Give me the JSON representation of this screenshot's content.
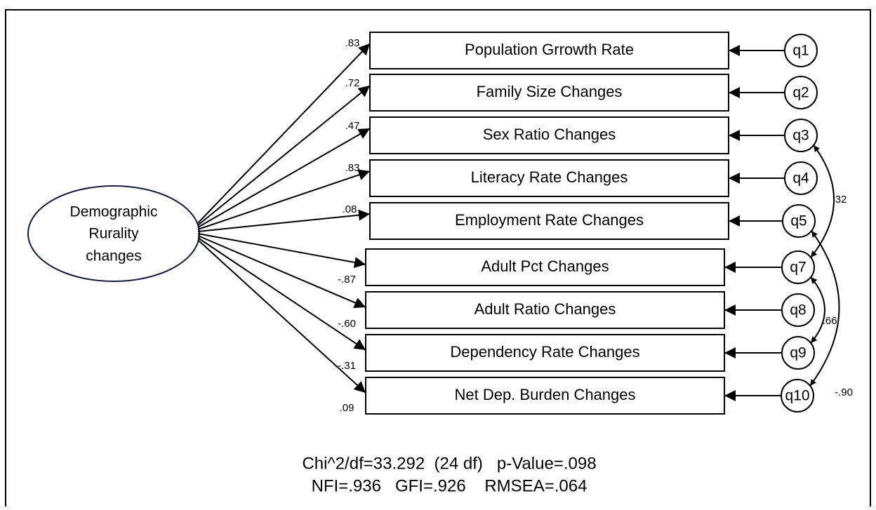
{
  "latent": {
    "label": [
      "Demographic",
      "Rurality",
      "changes"
    ]
  },
  "indicators": [
    {
      "label": "Population Grrowth Rate",
      "loading": ".83",
      "error": "q1"
    },
    {
      "label": "Family Size Changes",
      "loading": ".72",
      "error": "q2"
    },
    {
      "label": "Sex Ratio Changes",
      "loading": ".47",
      "error": "q3"
    },
    {
      "label": "Literacy Rate Changes",
      "loading": ".83",
      "error": "q4"
    },
    {
      "label": "Employment Rate Changes",
      "loading": ".08",
      "error": "q5"
    },
    {
      "label": "Adult Pct Changes",
      "loading": "-.87",
      "error": "q7"
    },
    {
      "label": "Adult Ratio Changes",
      "loading": "-.60",
      "error": "q8"
    },
    {
      "label": "Dependency Rate Changes",
      "loading": "-.31",
      "error": "q9"
    },
    {
      "label": "Net Dep. Burden Changes",
      "loading": ".09",
      "error": "q10"
    }
  ],
  "covariances": [
    {
      "from": "q3",
      "to": "q7",
      "label": ".32"
    },
    {
      "from": "q7",
      "to": "q9",
      "label": ".66"
    },
    {
      "from": "q5",
      "to": "q10",
      "label": "-.90"
    }
  ],
  "fit": [
    "Chi^2/df=33.292  (24 df)   p-Value=.098",
    "NFI=.936   GFI=.926    RMSEA=.064"
  ]
}
